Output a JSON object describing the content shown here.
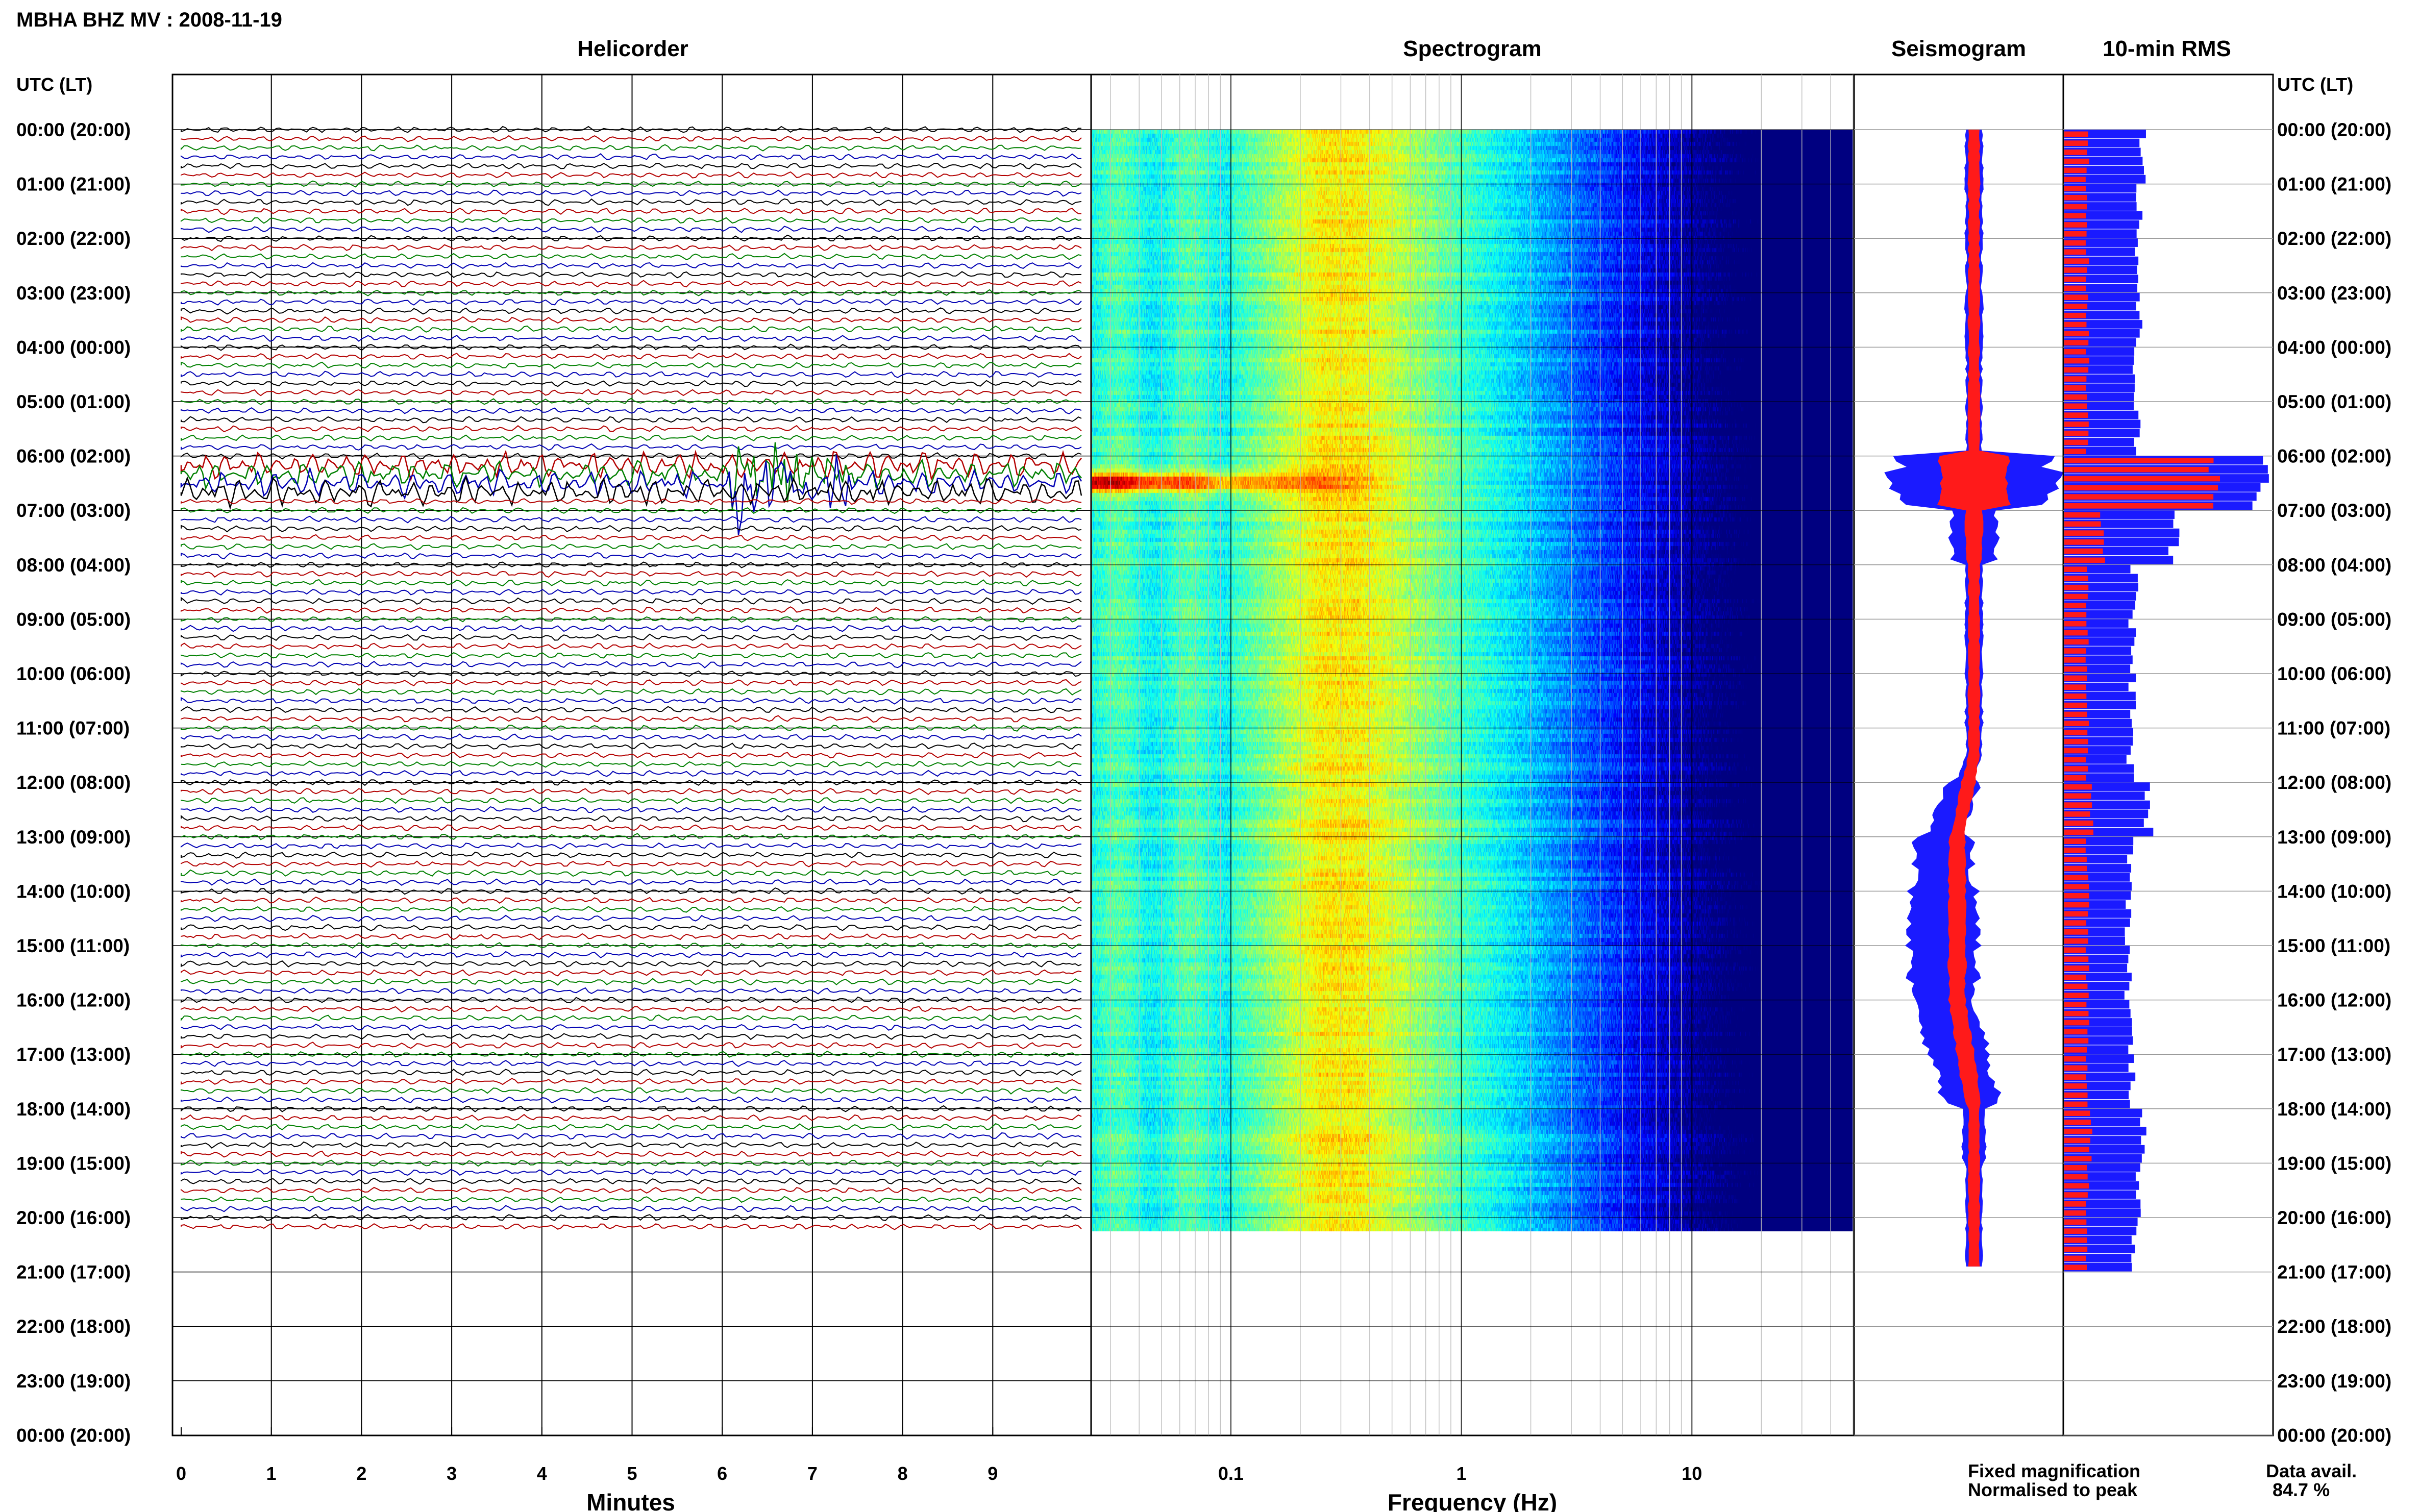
{
  "header": {
    "title": "MBHA BHZ MV : 2008-11-19",
    "utc_label_left": "UTC (LT)",
    "utc_label_right": "UTC (LT)"
  },
  "panels": {
    "helicorder": "Helicorder",
    "spectrogram": "Spectrogram",
    "seismogram": "Seismogram",
    "rms": "10-min RMS"
  },
  "time_labels": [
    "00:00 (20:00)",
    "01:00 (21:00)",
    "02:00 (22:00)",
    "03:00 (23:00)",
    "04:00 (00:00)",
    "05:00 (01:00)",
    "06:00 (02:00)",
    "07:00 (03:00)",
    "08:00 (04:00)",
    "09:00 (05:00)",
    "10:00 (06:00)",
    "11:00 (07:00)",
    "12:00 (08:00)",
    "13:00 (09:00)",
    "14:00 (10:00)",
    "15:00 (11:00)",
    "16:00 (12:00)",
    "17:00 (13:00)",
    "18:00 (14:00)",
    "19:00 (15:00)",
    "20:00 (16:00)",
    "21:00 (17:00)",
    "22:00 (18:00)",
    "23:00 (19:00)",
    "00:00 (20:00)"
  ],
  "legend": {
    "fixed": "Fixed magnification",
    "normalised": "Normalised to peak",
    "fixed_color": "#1a1aff",
    "normalised_color": "#ff1a1a"
  },
  "availability": {
    "label": "Data avail.",
    "value": "84.7 %"
  },
  "chart_data": {
    "type": "heatmap",
    "helicorder": {
      "xlabel": "Minutes",
      "x_ticks": [
        "0",
        "1",
        "2",
        "3",
        "4",
        "5",
        "6",
        "7",
        "8",
        "9"
      ],
      "xlim": [
        0,
        10
      ],
      "trace_colors": [
        "#000000",
        "#b30000",
        "#008000",
        "#0000b3"
      ],
      "lines_per_hour": 6,
      "data_end_hour": 20.1,
      "event_hour": 6.4
    },
    "spectrogram": {
      "xlabel": "Frequency (Hz)",
      "x_ticks": [
        "0.1",
        "1",
        "10"
      ],
      "x_scale": "log",
      "xlim": [
        0.025,
        50
      ],
      "colormap": "jet"
    },
    "seismogram": {
      "series": [
        {
          "name": "Fixed magnification",
          "color": "#1a1aff",
          "amplitude": [
            0.15,
            0.15,
            0.14,
            0.15,
            0.14,
            0.14,
            1.4,
            0.4,
            0.15,
            0.15,
            0.15,
            0.14,
            0.3,
            0.5,
            0.6,
            0.6,
            0.55,
            0.5,
            0.2,
            0.15,
            0.14
          ]
        },
        {
          "name": "Normalised to peak",
          "color": "#ff1a1a",
          "amplitude": [
            0.1,
            0.1,
            0.1,
            0.1,
            0.1,
            0.1,
            0.6,
            0.15,
            0.1,
            0.1,
            0.1,
            0.1,
            0.12,
            0.15,
            0.15,
            0.15,
            0.15,
            0.15,
            0.1,
            0.1,
            0.1
          ]
        }
      ]
    },
    "rms": {
      "xlabel": "10-min RMS",
      "series": [
        {
          "name": "Fixed magnification",
          "color": "#1a1aff",
          "values": [
            0.4,
            0.38,
            0.37,
            0.37,
            0.36,
            0.36,
            1.0,
            0.55,
            0.35,
            0.34,
            0.34,
            0.33,
            0.42,
            0.33,
            0.32,
            0.32,
            0.33,
            0.34,
            0.4,
            0.36,
            0.35
          ]
        },
        {
          "name": "Normalised to peak",
          "color": "#ff1a1a",
          "values": [
            0.12,
            0.12,
            0.12,
            0.12,
            0.12,
            0.12,
            0.8,
            0.2,
            0.12,
            0.12,
            0.12,
            0.12,
            0.14,
            0.12,
            0.12,
            0.12,
            0.12,
            0.12,
            0.14,
            0.12,
            0.12
          ]
        }
      ]
    }
  }
}
